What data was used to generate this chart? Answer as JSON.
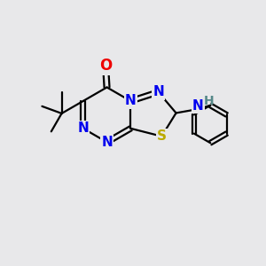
{
  "background_color": "#e8e8ea",
  "bond_color": "#000000",
  "bond_width": 1.6,
  "atom_colors": {
    "N": "#0000ee",
    "O": "#ee0000",
    "S": "#bbaa00",
    "H": "#558888",
    "C": "#000000"
  },
  "font_size_atom": 11,
  "font_size_nh": 10
}
